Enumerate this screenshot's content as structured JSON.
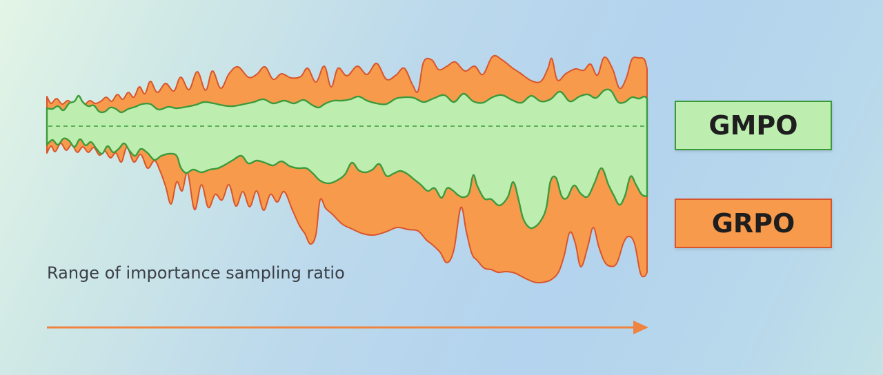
{
  "legend": {
    "gmpo_label": "GMPO",
    "grpo_label": "GRPO"
  },
  "x_caption": "Range of importance sampling ratio",
  "colors": {
    "gmpo_fill": "#bdeeb0",
    "gmpo_stroke": "#3c9a3c",
    "gmpo_box_border": "#3a9a3a",
    "grpo_fill": "#f79a4c",
    "grpo_stroke": "#d9542c",
    "grpo_box_border": "#d9542c",
    "arrow": "#ee8440",
    "centerline": "#3c9a3c"
  }
}
